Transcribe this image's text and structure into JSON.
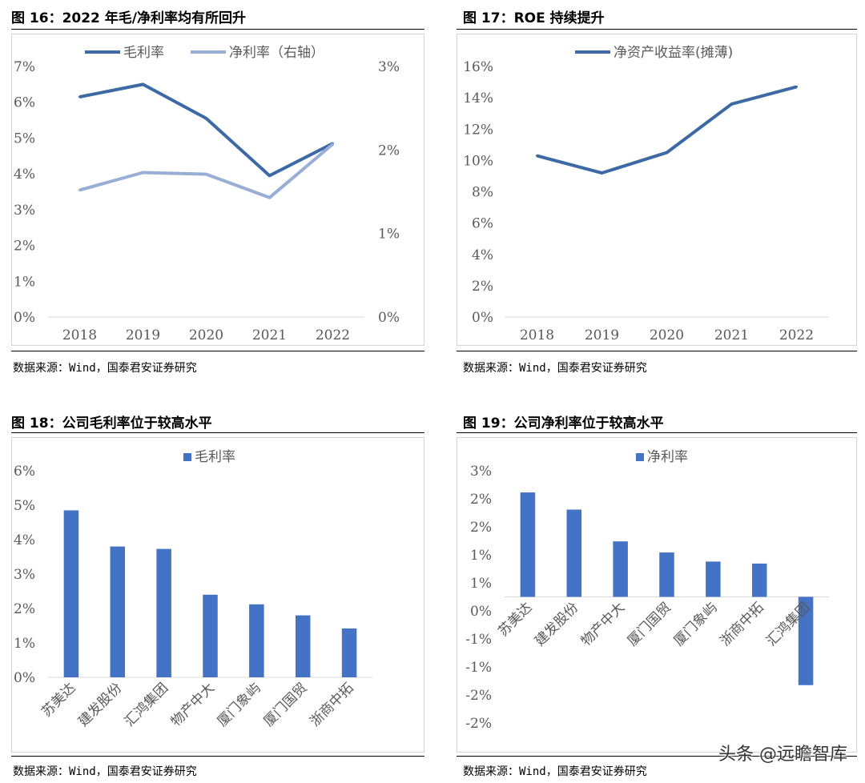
{
  "colors": {
    "primary": "#3d6aa5",
    "secondary": "#98aed5",
    "bar": "#4472c4",
    "axis": "#d9d9d9",
    "text": "#595959"
  },
  "source_text": "数据来源：Wind，国泰君安证券研究",
  "watermark": "头条 @远瞻智库",
  "charts": {
    "fig16": {
      "title": "图 16：2022 年毛/净利率均有所回升"
    },
    "fig17": {
      "title": "图 17：ROE 持续提升"
    },
    "fig18": {
      "title": "图 18：公司毛利率位于较高水平"
    },
    "fig19": {
      "title": "图 19：公司净利率位于较高水平"
    }
  },
  "chart_data": [
    {
      "id": "fig16",
      "type": "line",
      "title": "图 16：2022 年毛/净利率均有所回升",
      "categories": [
        "2018",
        "2019",
        "2020",
        "2021",
        "2022"
      ],
      "series": [
        {
          "name": "毛利率",
          "axis": "left",
          "values": [
            6.15,
            6.5,
            5.55,
            3.95,
            4.85
          ]
        },
        {
          "name": "净利率（右轴）",
          "axis": "right",
          "values": [
            1.52,
            1.73,
            1.71,
            1.43,
            2.07
          ]
        }
      ],
      "ylim_left": [
        0,
        7
      ],
      "yticks_left": [
        "0%",
        "1%",
        "2%",
        "3%",
        "4%",
        "5%",
        "6%",
        "7%"
      ],
      "ylim_right": [
        0,
        3
      ],
      "yticks_right": [
        "0%",
        "1%",
        "2%",
        "3%"
      ],
      "legend": "top"
    },
    {
      "id": "fig17",
      "type": "line",
      "title": "图 17：ROE 持续提升",
      "categories": [
        "2018",
        "2019",
        "2020",
        "2021",
        "2022"
      ],
      "series": [
        {
          "name": "净资产收益率(摊薄)",
          "values": [
            10.3,
            9.2,
            10.5,
            13.6,
            14.7
          ]
        }
      ],
      "ylim": [
        0,
        16
      ],
      "yticks": [
        "0%",
        "2%",
        "4%",
        "6%",
        "8%",
        "10%",
        "12%",
        "14%",
        "16%"
      ],
      "legend": "top"
    },
    {
      "id": "fig18",
      "type": "bar",
      "title": "图 18：公司毛利率位于较高水平",
      "categories": [
        "苏美达",
        "建发股份",
        "汇鸿集团",
        "物产中大",
        "厦门象屿",
        "厦门国贸",
        "浙商中拓"
      ],
      "series": [
        {
          "name": "毛利率",
          "values": [
            4.85,
            3.8,
            3.73,
            2.4,
            2.12,
            1.8,
            1.42
          ]
        }
      ],
      "ylim": [
        0,
        6
      ],
      "yticks": [
        "0%",
        "1%",
        "2%",
        "3%",
        "4%",
        "5%",
        "6%"
      ],
      "legend": "top"
    },
    {
      "id": "fig19",
      "type": "bar",
      "title": "图 19：公司净利率位于较高水平",
      "categories": [
        "苏美达",
        "建发股份",
        "物产中大",
        "厦门国贸",
        "厦门象屿",
        "浙商中拓",
        "汇鸿集团"
      ],
      "series": [
        {
          "name": "净利率",
          "values": [
            2.07,
            1.73,
            1.1,
            0.88,
            0.7,
            0.66,
            -1.75
          ]
        }
      ],
      "ylim": [
        -2.5,
        2.5
      ],
      "yticks": [
        "-2%",
        "-2%",
        "-1%",
        "-1%",
        "0%",
        "1%",
        "1%",
        "2%",
        "2%",
        "3%"
      ],
      "legend": "top"
    }
  ]
}
